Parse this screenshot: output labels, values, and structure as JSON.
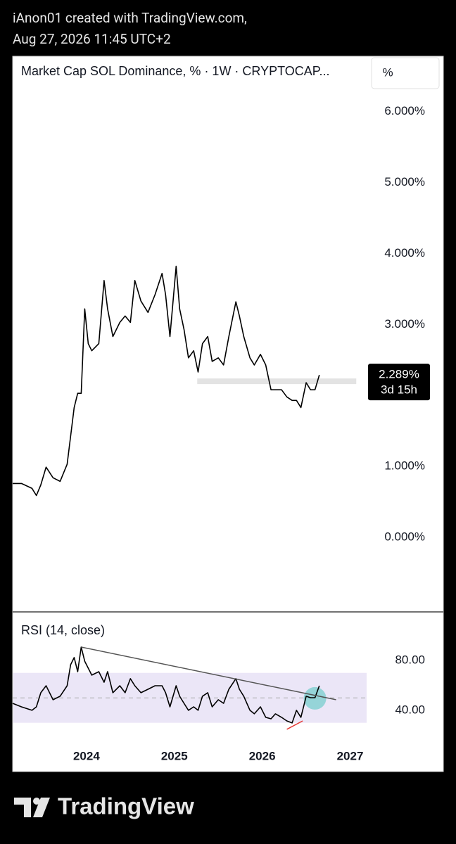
{
  "header": {
    "line1": "iAnon01 created with TradingView.com,",
    "line2": "Aug 27, 2026 11:45 UTC+2"
  },
  "footer": {
    "brand": "TradingView"
  },
  "chart_data": [
    {
      "type": "line",
      "title": "Market Cap SOL Dominance, % · 1W · CRYPTOCAP...",
      "unit_button": "%",
      "x": [
        2023.16,
        2023.26,
        2023.38,
        2023.43,
        2023.48,
        2023.54,
        2023.62,
        2023.7,
        2023.78,
        2023.82,
        2023.86,
        2023.9,
        2023.94,
        2023.98,
        2024.02,
        2024.06,
        2024.14,
        2024.2,
        2024.24,
        2024.3,
        2024.38,
        2024.44,
        2024.5,
        2024.55,
        2024.62,
        2024.7,
        2024.78,
        2024.86,
        2024.9,
        2024.95,
        2025.02,
        2025.06,
        2025.11,
        2025.16,
        2025.22,
        2025.27,
        2025.32,
        2025.38,
        2025.43,
        2025.5,
        2025.56,
        2025.62,
        2025.7,
        2025.74,
        2025.79,
        2025.86,
        2025.91,
        2025.98,
        2026.04,
        2026.1,
        2026.15,
        2026.22,
        2026.28,
        2026.34,
        2026.39,
        2026.44,
        2026.5,
        2026.55,
        2026.6,
        2026.65
      ],
      "values": [
        0.76,
        0.76,
        0.69,
        0.59,
        0.74,
        0.99,
        0.84,
        0.79,
        1.03,
        1.43,
        1.83,
        2.03,
        2.03,
        3.22,
        2.73,
        2.63,
        2.73,
        3.62,
        3.22,
        2.83,
        3.03,
        3.12,
        3.03,
        3.62,
        3.33,
        3.17,
        3.42,
        3.72,
        3.42,
        2.83,
        3.82,
        3.22,
        2.93,
        2.53,
        2.63,
        2.33,
        2.73,
        2.83,
        2.48,
        2.53,
        2.43,
        2.83,
        3.32,
        3.12,
        2.83,
        2.53,
        2.43,
        2.58,
        2.43,
        2.08,
        2.08,
        2.08,
        1.98,
        1.93,
        1.93,
        1.83,
        2.18,
        2.08,
        2.08,
        2.289
      ],
      "color": "#000000",
      "xlim": [
        2023.16,
        2027.18
      ],
      "ylim": [
        -1.05,
        6.78
      ],
      "yticks": [
        {
          "value": 0,
          "label": "0.000%"
        },
        {
          "value": 1,
          "label": "1.000%"
        },
        {
          "value": 3,
          "label": "3.000%"
        },
        {
          "value": 4,
          "label": "4.000%"
        },
        {
          "value": 5,
          "label": "5.000%"
        },
        {
          "value": 6,
          "label": "6.000%"
        }
      ],
      "level": {
        "x": [
          2025.26,
          2027.07
        ],
        "y": 2.2,
        "color": "#e3e3e3"
      },
      "last_price": {
        "value": 2.289,
        "label": "2.289%"
      },
      "countdown": "3d 15h"
    },
    {
      "type": "line",
      "title": "RSI (14, close)",
      "x": [
        2023.16,
        2023.26,
        2023.38,
        2023.43,
        2023.48,
        2023.54,
        2023.62,
        2023.7,
        2023.78,
        2023.82,
        2023.86,
        2023.9,
        2023.94,
        2023.98,
        2024.02,
        2024.06,
        2024.14,
        2024.2,
        2024.24,
        2024.3,
        2024.38,
        2024.44,
        2024.5,
        2024.55,
        2024.62,
        2024.7,
        2024.78,
        2024.86,
        2024.9,
        2024.95,
        2025.02,
        2025.06,
        2025.11,
        2025.16,
        2025.22,
        2025.27,
        2025.32,
        2025.38,
        2025.43,
        2025.5,
        2025.56,
        2025.62,
        2025.7,
        2025.74,
        2025.79,
        2025.86,
        2025.91,
        2025.98,
        2026.04,
        2026.1,
        2026.15,
        2026.22,
        2026.28,
        2026.34,
        2026.39,
        2026.44,
        2026.5,
        2026.55,
        2026.6,
        2026.65
      ],
      "values": [
        45.6,
        42.8,
        40,
        42.8,
        54.1,
        59.7,
        48.5,
        51.3,
        59.7,
        76.6,
        82.3,
        71,
        90.7,
        79.4,
        73.8,
        68.2,
        71,
        62.5,
        71,
        54.1,
        59.7,
        54.1,
        65.4,
        59.7,
        54.1,
        56.9,
        59.7,
        59.7,
        54.1,
        42.8,
        59.7,
        51.3,
        45.6,
        40,
        42.8,
        40,
        51.3,
        54.1,
        42.8,
        48.5,
        45.6,
        56.9,
        65.4,
        56.9,
        51.3,
        40,
        37.2,
        42.8,
        34.4,
        33.2,
        37.2,
        34.4,
        31.5,
        29.9,
        40,
        34.4,
        51.3,
        50.1,
        50.1,
        59.7
      ],
      "color": "#000000",
      "xlim": [
        2023.16,
        2027.18
      ],
      "ylim": [
        14.6,
        118.9
      ],
      "xticks": [
        2024,
        2025,
        2026,
        2027
      ],
      "yticks": [
        {
          "value": 80,
          "label": "80.00"
        },
        {
          "value": 40,
          "label": "40.00"
        }
      ],
      "band": [
        30,
        70
      ],
      "band_color": "#ebe6f7",
      "midline": 50,
      "trendlines": [
        {
          "x": [
            2023.94,
            2026.84
          ],
          "y": [
            90.7,
            48.5
          ],
          "color": "#555555"
        },
        {
          "x": [
            2026.28,
            2026.46
          ],
          "y": [
            24.8,
            31.5
          ],
          "color": "#e53935"
        }
      ],
      "highlight": {
        "x": 2026.6,
        "y": 49.6,
        "color": "#7fcfcf"
      }
    }
  ]
}
